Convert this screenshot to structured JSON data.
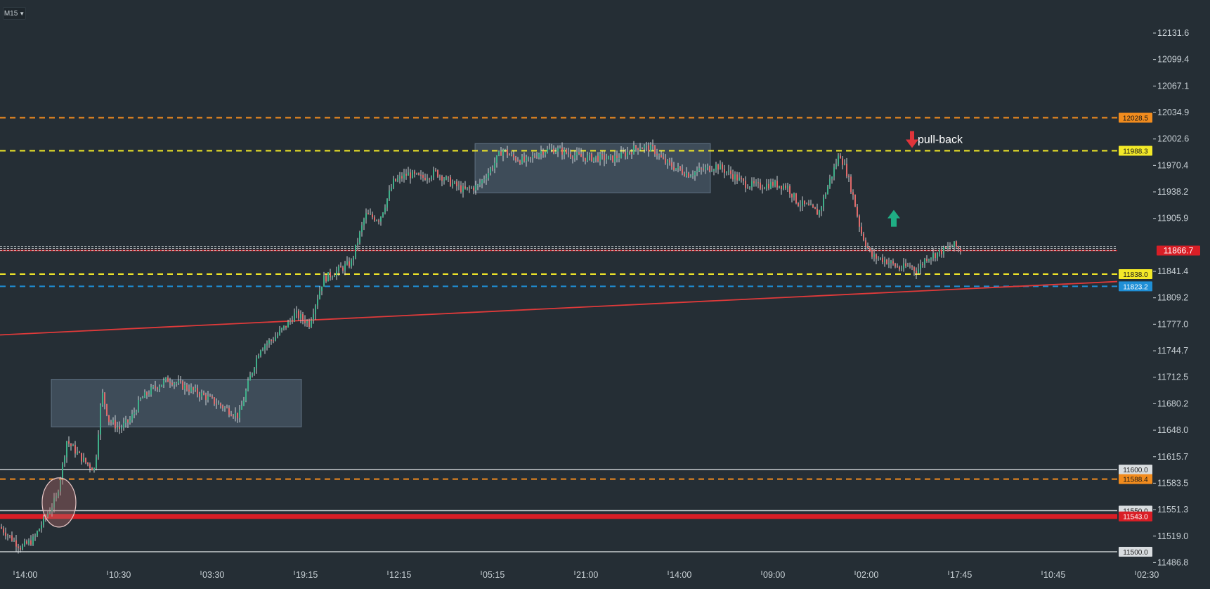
{
  "toolbar": {
    "timeframe": "M15",
    "caret_icon": "chevron-down-icon"
  },
  "chart_data": {
    "type": "candlestick",
    "y_axis": {
      "range": [
        11476,
        12165
      ],
      "ticks": [
        12131.6,
        12099.4,
        12067.1,
        12034.9,
        12002.6,
        11970.4,
        11938.2,
        11905.9,
        11841.4,
        11809.2,
        11777.0,
        11744.7,
        11712.5,
        11680.2,
        11648.0,
        11615.7,
        11583.5,
        11551.3,
        11519.0,
        11486.8
      ],
      "tick_labels": [
        "12131.6",
        "12099.4",
        "12067.1",
        "12034.9",
        "12002.6",
        "11970.4",
        "11938.2",
        "11905.9",
        "11841.4",
        "11809.2",
        "11777.0",
        "11744.7",
        "11712.5",
        "11680.2",
        "11648.0",
        "11615.7",
        "11583.5",
        "11551.3",
        "11519.0",
        "11486.8"
      ]
    },
    "x_axis": {
      "tick_labels": [
        "14:00",
        "10:30",
        "03:30",
        "19:15",
        "12:15",
        "05:15",
        "21:00",
        "14:00",
        "09:00",
        "02:00",
        "17:45",
        "10:45",
        "02:30"
      ]
    },
    "price_path": [
      [
        0,
        11530
      ],
      [
        30,
        11505
      ],
      [
        48,
        11515
      ],
      [
        60,
        11535
      ],
      [
        80,
        11565
      ],
      [
        88,
        11600
      ],
      [
        95,
        11635
      ],
      [
        105,
        11625
      ],
      [
        120,
        11610
      ],
      [
        135,
        11600
      ],
      [
        145,
        11695
      ],
      [
        155,
        11660
      ],
      [
        170,
        11650
      ],
      [
        185,
        11660
      ],
      [
        200,
        11685
      ],
      [
        220,
        11700
      ],
      [
        240,
        11710
      ],
      [
        265,
        11700
      ],
      [
        290,
        11690
      ],
      [
        320,
        11675
      ],
      [
        340,
        11665
      ],
      [
        355,
        11710
      ],
      [
        370,
        11748
      ],
      [
        390,
        11760
      ],
      [
        410,
        11778
      ],
      [
        420,
        11790
      ],
      [
        440,
        11778
      ],
      [
        460,
        11832
      ],
      [
        480,
        11842
      ],
      [
        500,
        11852
      ],
      [
        520,
        11910
      ],
      [
        540,
        11905
      ],
      [
        560,
        11950
      ],
      [
        580,
        11960
      ],
      [
        600,
        11955
      ],
      [
        620,
        11962
      ],
      [
        640,
        11950
      ],
      [
        660,
        11940
      ],
      [
        680,
        11945
      ],
      [
        700,
        11968
      ],
      [
        715,
        11990
      ],
      [
        730,
        11980
      ],
      [
        750,
        11975
      ],
      [
        770,
        11988
      ],
      [
        790,
        11990
      ],
      [
        810,
        11985
      ],
      [
        830,
        11980
      ],
      [
        850,
        11980
      ],
      [
        870,
        11978
      ],
      [
        890,
        11985
      ],
      [
        910,
        11994
      ],
      [
        930,
        11990
      ],
      [
        945,
        11975
      ],
      [
        960,
        11968
      ],
      [
        980,
        11960
      ],
      [
        1000,
        11965
      ],
      [
        1020,
        11970
      ],
      [
        1040,
        11960
      ],
      [
        1060,
        11948
      ],
      [
        1080,
        11945
      ],
      [
        1100,
        11948
      ],
      [
        1120,
        11945
      ],
      [
        1135,
        11925
      ],
      [
        1150,
        11920
      ],
      [
        1165,
        11912
      ],
      [
        1180,
        11950
      ],
      [
        1195,
        11985
      ],
      [
        1205,
        11962
      ],
      [
        1215,
        11930
      ],
      [
        1225,
        11890
      ],
      [
        1240,
        11860
      ],
      [
        1260,
        11855
      ],
      [
        1280,
        11845
      ],
      [
        1295,
        11848
      ],
      [
        1305,
        11842
      ],
      [
        1318,
        11858
      ],
      [
        1330,
        11862
      ],
      [
        1345,
        11868
      ],
      [
        1358,
        11873
      ],
      [
        1368,
        11867
      ]
    ],
    "horizontal_lines": [
      {
        "label": "12028.5",
        "value": 12028.5,
        "color": "#f28c1e",
        "style": "dashed"
      },
      {
        "label": "11988.3",
        "value": 11988.3,
        "color": "#f3e928",
        "style": "dashed"
      },
      {
        "label": "11866.7",
        "value": 11866.7,
        "color": "#d91e26",
        "style": "solid-current"
      },
      {
        "label": "11838.0",
        "value": 11838.0,
        "color": "#f3e928",
        "style": "dashed"
      },
      {
        "label": "11823.2",
        "value": 11823.2,
        "color": "#1f8fd6",
        "style": "dashed"
      },
      {
        "label": "11600.0",
        "value": 11600.0,
        "color": "#c9cdd0",
        "style": "solid"
      },
      {
        "label": "11588.4",
        "value": 11588.4,
        "color": "#f28c1e",
        "style": "dashed"
      },
      {
        "label": "11550.0",
        "value": 11550.0,
        "color": "#c9cdd0",
        "style": "solid"
      },
      {
        "label": "11543.0",
        "value": 11543.0,
        "color": "#d91e26",
        "style": "thick"
      },
      {
        "label": "11500.0",
        "value": 11500.0,
        "color": "#c9cdd0",
        "style": "solid"
      }
    ],
    "trendline": {
      "from": [
        0,
        11764
      ],
      "to": [
        1590,
        11829
      ],
      "color": "#e03a3a"
    },
    "zones": [
      {
        "x1": 73,
        "x2": 429,
        "y_top": 11710,
        "y_bottom": 11652
      },
      {
        "x1": 676,
        "x2": 1011,
        "y_top": 11997,
        "y_bottom": 11937
      }
    ],
    "annotations": [
      {
        "type": "ellipse",
        "cx": 84,
        "cy": 11560
      },
      {
        "type": "arrow-up",
        "x": 1272,
        "y": 11906,
        "color": "#1fae84"
      },
      {
        "type": "arrow-down",
        "x": 1298,
        "y": 12002,
        "color": "#e0343a",
        "text": "pull-back"
      }
    ],
    "colors": {
      "background": "#252e35",
      "axis_text": "#c9d1d6",
      "candle_up": "#3fb08a",
      "candle_down": "#e06a6a",
      "zone": "#6a7f95"
    }
  }
}
